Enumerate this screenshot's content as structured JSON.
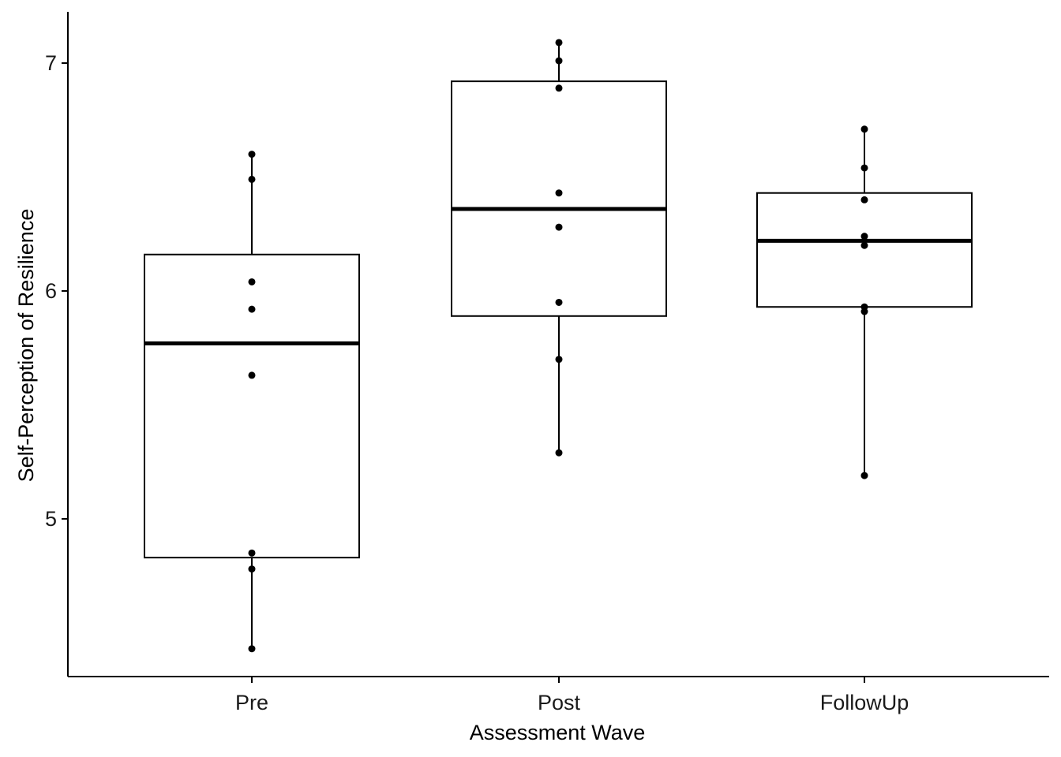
{
  "chart_data": {
    "type": "box",
    "title": "",
    "xlabel": "Assessment Wave",
    "ylabel": "Self-Perception of Resilience",
    "categories": [
      "Pre",
      "Post",
      "FollowUp"
    ],
    "ylim": [
      4.33,
      7.23
    ],
    "yticks": [
      5,
      6,
      7
    ],
    "grid": false,
    "boxes": [
      {
        "category": "Pre",
        "whisker_low": 4.43,
        "q1": 4.83,
        "median": 5.77,
        "q3": 6.16,
        "whisker_high": 6.6
      },
      {
        "category": "Post",
        "whisker_low": 5.29,
        "q1": 5.89,
        "median": 6.36,
        "q3": 6.92,
        "whisker_high": 7.09
      },
      {
        "category": "FollowUp",
        "whisker_low": 5.19,
        "q1": 5.93,
        "median": 6.22,
        "q3": 6.43,
        "whisker_high": 6.71
      }
    ],
    "points": [
      {
        "category": "Pre",
        "values": [
          4.43,
          4.78,
          4.85,
          5.63,
          5.92,
          6.04,
          6.49,
          6.6
        ]
      },
      {
        "category": "Post",
        "values": [
          5.29,
          5.7,
          5.95,
          6.28,
          6.43,
          6.89,
          7.01,
          7.09
        ]
      },
      {
        "category": "FollowUp",
        "values": [
          5.19,
          5.91,
          5.93,
          6.2,
          6.24,
          6.4,
          6.54,
          6.71
        ]
      }
    ],
    "colors": {
      "box_stroke": "#000000",
      "box_fill": "#ffffff",
      "point": "#000000",
      "axis": "#000000"
    }
  }
}
